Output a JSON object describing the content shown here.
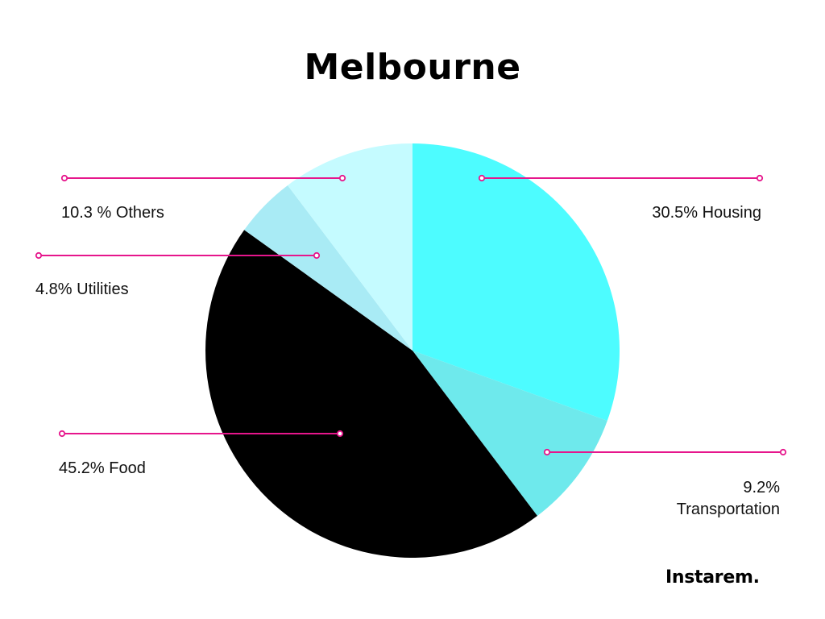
{
  "chart_data": {
    "type": "pie",
    "title": "Melbourne",
    "slices": [
      {
        "name": "Housing",
        "value": 30.5,
        "label": "30.5% Housing",
        "color": "#4dfcff"
      },
      {
        "name": "Transportation",
        "value": 9.2,
        "label_lines": [
          "9.2%",
          "Transportation"
        ],
        "color": "#6ee9ec"
      },
      {
        "name": "Food",
        "value": 45.2,
        "label": "45.2% Food",
        "color": "#000000"
      },
      {
        "name": "Utilities",
        "value": 4.8,
        "label": "4.8% Utilities",
        "color": "#a9ebf5"
      },
      {
        "name": "Others",
        "value": 10.3,
        "label": "10.3 % Others",
        "color": "#c5fbff"
      }
    ],
    "start_angle_deg": 0,
    "direction": "clockwise",
    "leader_color": "#e6168c",
    "legend": "none"
  },
  "brand": {
    "name": "Instarem."
  }
}
